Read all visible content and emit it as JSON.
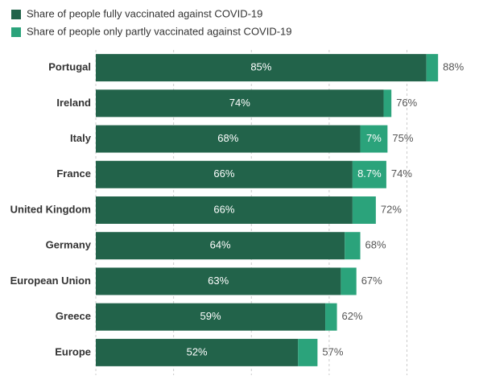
{
  "chart_data": {
    "type": "stacked-bar-horizontal",
    "categories": [
      "Portugal",
      "Ireland",
      "Italy",
      "France",
      "United Kingdom",
      "Germany",
      "European Union",
      "Greece",
      "Europe"
    ],
    "series": [
      {
        "name": "Share of people fully vaccinated against COVID-19",
        "color": "#22634a",
        "values": [
          85,
          74,
          68,
          66,
          66,
          64,
          63,
          59,
          52
        ],
        "value_labels": [
          "85%",
          "74%",
          "68%",
          "66%",
          "66%",
          "64%",
          "63%",
          "59%",
          "52%"
        ]
      },
      {
        "name": "Share of people only partly vaccinated against COVID-19",
        "color": "#2ba37b",
        "values": [
          3,
          2,
          7,
          8.7,
          6,
          4,
          4,
          3,
          5
        ],
        "value_labels": [
          null,
          null,
          "7%",
          "8.7%",
          null,
          null,
          null,
          null,
          null
        ]
      }
    ],
    "totals": [
      88,
      76,
      75,
      74,
      72,
      68,
      67,
      62,
      57
    ],
    "total_labels": [
      "88%",
      "76%",
      "75%",
      "74%",
      "72%",
      "68%",
      "67%",
      "62%",
      "57%"
    ],
    "xlim": [
      0,
      95
    ],
    "xticks": [
      0,
      20,
      40,
      60,
      80
    ],
    "grid": true
  }
}
